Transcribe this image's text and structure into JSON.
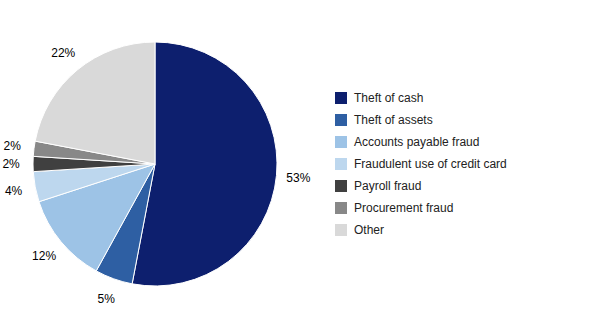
{
  "chart_data": {
    "type": "pie",
    "categories": [
      "Theft of cash",
      "Theft of assets",
      "Accounts payable fraud",
      "Fraudulent use of credit card",
      "Payroll fraud",
      "Procurement fraud",
      "Other"
    ],
    "values": [
      53,
      5,
      12,
      4,
      2,
      2,
      22
    ],
    "value_labels": [
      "53%",
      "5%",
      "12%",
      "4%",
      "2%",
      "2%",
      "22%"
    ],
    "colors": [
      "#0d1f6e",
      "#2e5fa3",
      "#9dc3e6",
      "#bdd7ee",
      "#404040",
      "#888888",
      "#d9d9d9"
    ],
    "data_labels": true
  }
}
